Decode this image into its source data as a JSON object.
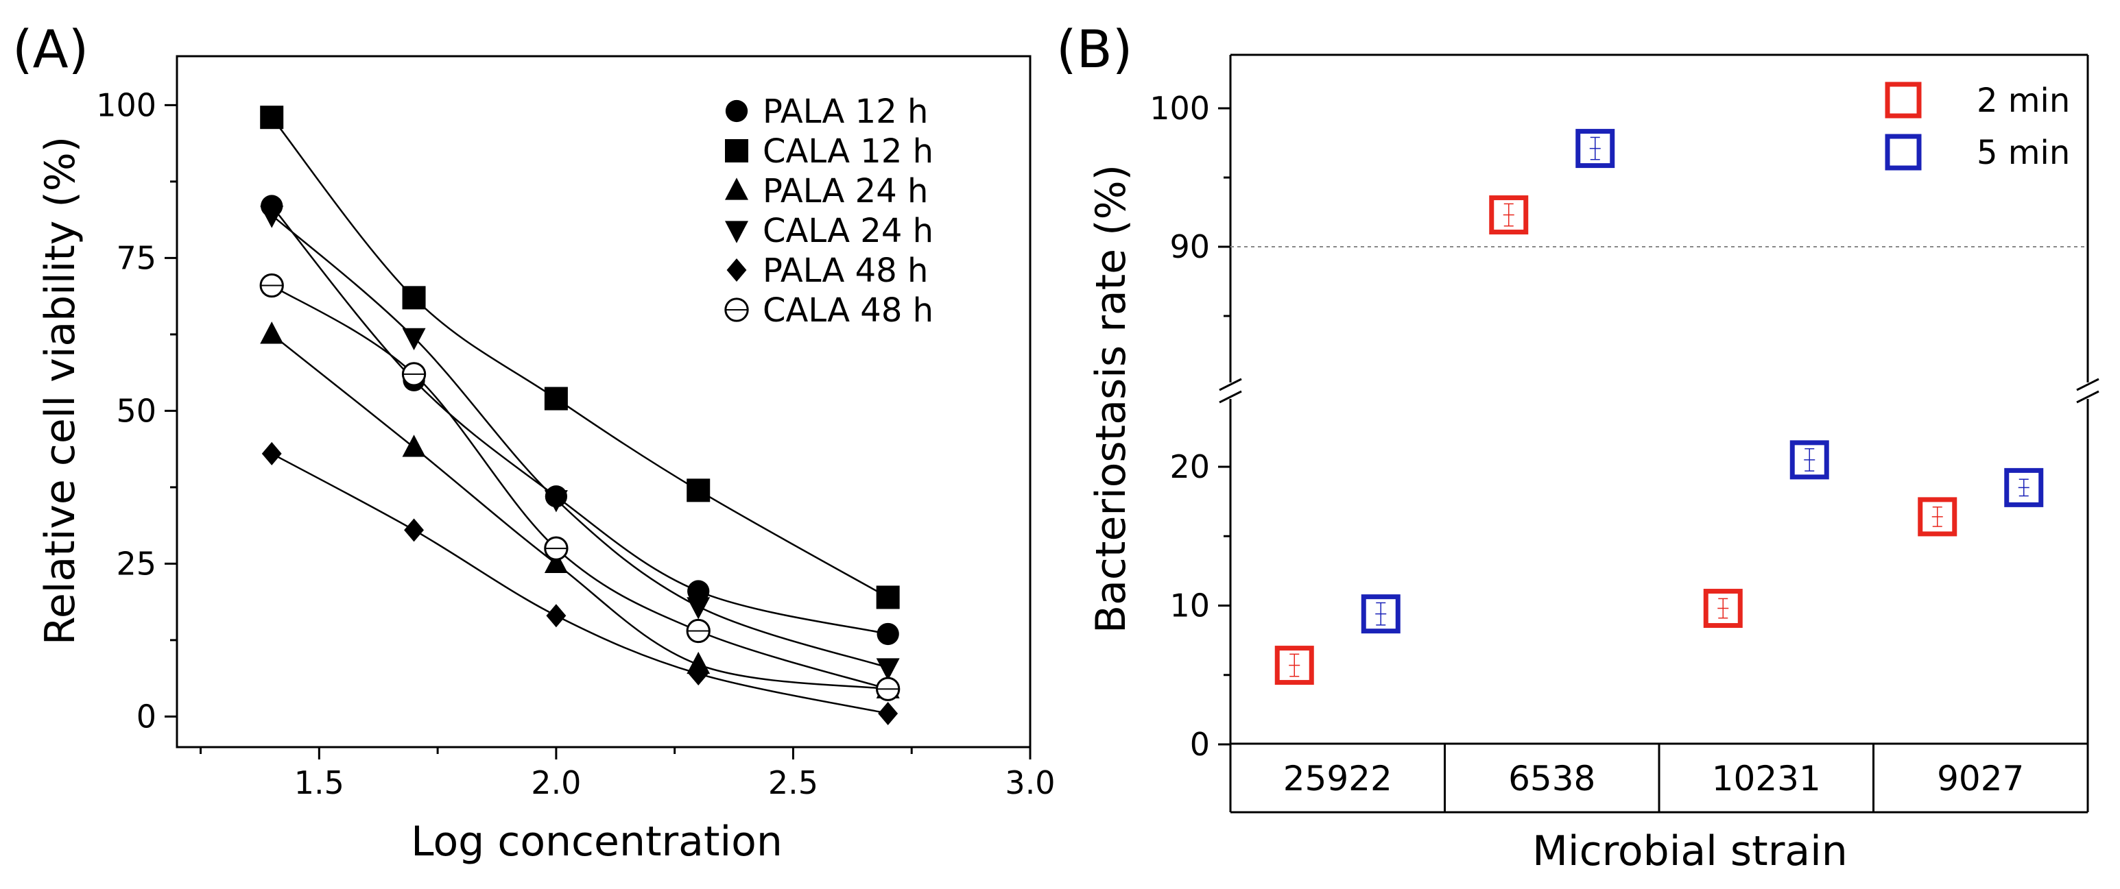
{
  "chart_data": [
    {
      "id": "A",
      "panel_label": "(A)",
      "type": "line",
      "title": "",
      "xlabel": "Log concentration",
      "ylabel": "Relative cell viability (%)",
      "xlim": [
        1.2,
        3.0
      ],
      "ylim": [
        -5,
        108
      ],
      "xticks": [
        1.5,
        2.0,
        2.5,
        3.0
      ],
      "xtick_labels": [
        "1.5",
        "2.0",
        "2.5",
        "3.0"
      ],
      "yticks": [
        0,
        25,
        50,
        75,
        100
      ],
      "ytick_labels": [
        "0",
        "25",
        "50",
        "75",
        "100"
      ],
      "grid": false,
      "legend": "top-right",
      "x": [
        1.4,
        1.7,
        2.0,
        2.3,
        2.7
      ],
      "series": [
        {
          "name": "PALA 12 h",
          "marker": "circle",
          "values": [
            83.5,
            55,
            36,
            20.5,
            13.5
          ]
        },
        {
          "name": "CALA 12 h",
          "marker": "square",
          "values": [
            98,
            68.5,
            52,
            37,
            19.5
          ]
        },
        {
          "name": "PALA 24 h",
          "marker": "triangle-up",
          "values": [
            62.5,
            44,
            25,
            8.5,
            4.5
          ]
        },
        {
          "name": "CALA 24 h",
          "marker": "triangle-down",
          "values": [
            82,
            62,
            35.5,
            18,
            8
          ]
        },
        {
          "name": "PALA 48 h",
          "marker": "diamond",
          "values": [
            43,
            30.5,
            16.5,
            7,
            0.5
          ]
        },
        {
          "name": "CALA 48 h",
          "marker": "open-circle",
          "values": [
            70.5,
            56,
            27.5,
            14,
            4.5
          ]
        }
      ]
    },
    {
      "id": "B",
      "panel_label": "(B)",
      "type": "scatter",
      "title": "",
      "xlabel": "Microbial strain",
      "ylabel": "Bacteriostasis rate (%)",
      "categories": [
        "25922",
        "6538",
        "10231",
        "9027"
      ],
      "y_break": {
        "lower_range": [
          0,
          25
        ],
        "upper_range": [
          80,
          104
        ]
      },
      "yticks": [
        0,
        10,
        20,
        90,
        100
      ],
      "ytick_labels": [
        "0",
        "10",
        "20",
        "90",
        "100"
      ],
      "reference_line": 90,
      "grid": false,
      "legend": "top-right",
      "series": [
        {
          "name": "2 min",
          "color": "#e8261d",
          "values": [
            5.7,
            92.3,
            9.8,
            16.4
          ],
          "errors": [
            0.8,
            0.8,
            0.7,
            0.7
          ]
        },
        {
          "name": "5 min",
          "color": "#1a22b8",
          "values": [
            9.4,
            97.1,
            20.5,
            18.5
          ],
          "errors": [
            0.8,
            0.8,
            0.8,
            0.6
          ]
        }
      ]
    }
  ]
}
